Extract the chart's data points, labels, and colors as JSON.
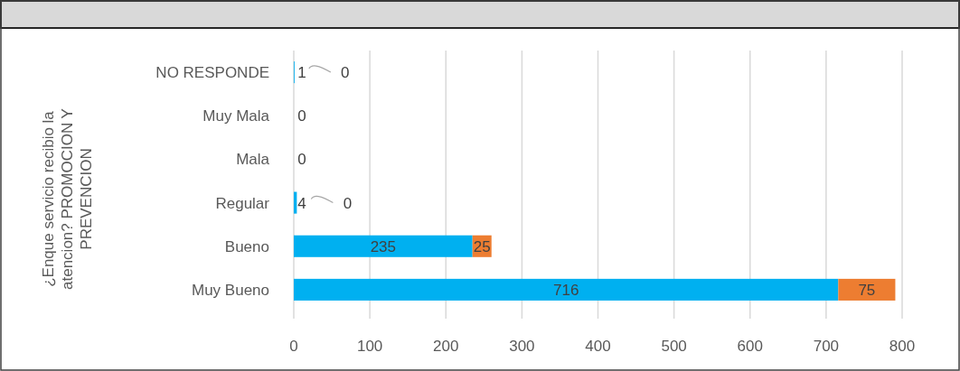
{
  "chart_data": {
    "type": "bar",
    "orientation": "horizontal",
    "stacked": true,
    "ylabel": "¿Enque servicio recibio la atencion?  PROMOCION Y PREVENCION",
    "categories": [
      "NO RESPONDE",
      "Muy Mala",
      "Mala",
      "Regular",
      "Bueno",
      "Muy Bueno"
    ],
    "series": [
      {
        "color": "#00b0f0",
        "values": [
          1,
          0,
          0,
          4,
          235,
          716
        ],
        "value_labels": [
          "1",
          "0",
          "0",
          "4",
          "235",
          "716"
        ]
      },
      {
        "color": "#ed7d31",
        "values": [
          0,
          0,
          0,
          0,
          25,
          75
        ],
        "value_labels": [
          "0",
          null,
          null,
          "0",
          "25",
          "75"
        ]
      }
    ],
    "xlim": [
      0,
      800
    ],
    "xticks": [
      0,
      100,
      200,
      300,
      400,
      500,
      600,
      700,
      800
    ],
    "grid": "x"
  }
}
